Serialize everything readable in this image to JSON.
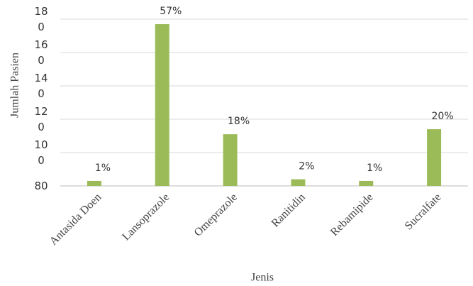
{
  "chart_data": {
    "type": "bar",
    "x_label": "Jenis",
    "y_label": "Jumlah Pasien",
    "categories": [
      "Antasida Doen",
      "Lansoprazole",
      "Omeprazole",
      "Ranitidin",
      "Rebamipide",
      "Sucralfate"
    ],
    "values": [
      83,
      177,
      111,
      84,
      83,
      114
    ],
    "percent_labels": [
      "1%",
      "57%",
      "18%",
      "2%",
      "1%",
      "20%"
    ],
    "color": "#9bbb59",
    "ylim": [
      80,
      180
    ],
    "yticks": [
      {
        "value": 80,
        "label": "80"
      },
      {
        "value": 100,
        "label": "10\n0"
      },
      {
        "value": 120,
        "label": "12\n0"
      },
      {
        "value": 140,
        "label": "14\n0"
      },
      {
        "value": 160,
        "label": "16\n0"
      },
      {
        "value": 180,
        "label": "18\n0"
      }
    ],
    "grid": true
  }
}
